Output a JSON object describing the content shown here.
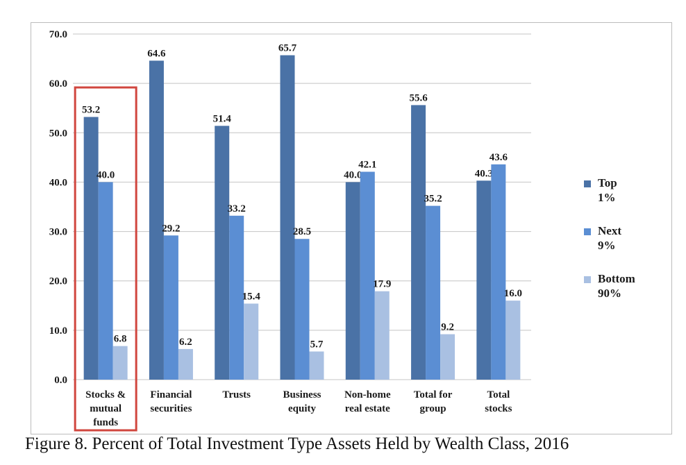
{
  "caption": "Figure 8. Percent of Total Investment Type Assets Held by Wealth Class, 2016",
  "chart_data": {
    "type": "bar",
    "title": "",
    "xlabel": "",
    "ylabel": "",
    "ylim": [
      0,
      70
    ],
    "yticks": [
      "0.0",
      "10.0",
      "20.0",
      "30.0",
      "40.0",
      "50.0",
      "60.0",
      "70.0"
    ],
    "grid": true,
    "legend_position": "right",
    "categories": [
      [
        "Stocks &",
        "mutual",
        "funds"
      ],
      [
        "Financial",
        "securities"
      ],
      [
        "Trusts"
      ],
      [
        "Business",
        "equity"
      ],
      [
        "Non-home",
        "real estate"
      ],
      [
        "Total for",
        "group"
      ],
      [
        "Total",
        "stocks"
      ]
    ],
    "series": [
      {
        "name": [
          "Top",
          "1%"
        ],
        "color": "#4a72a6",
        "values": [
          53.2,
          64.6,
          51.4,
          65.7,
          40.0,
          55.6,
          40.3
        ],
        "labels": [
          "53.2",
          "64.6",
          "51.4",
          "65.7",
          "40.0",
          "55.6",
          "40.3"
        ]
      },
      {
        "name": [
          "Next",
          "9%"
        ],
        "color": "#5b8ed3",
        "values": [
          40.0,
          29.2,
          33.2,
          28.5,
          42.1,
          35.2,
          43.6
        ],
        "labels": [
          "40.0",
          "29.2",
          "33.2",
          "28.5",
          "42.1",
          "35.2",
          "43.6"
        ]
      },
      {
        "name": [
          "Bottom",
          "90%"
        ],
        "color": "#a9c0e2",
        "values": [
          6.8,
          6.2,
          15.4,
          5.7,
          17.9,
          9.2,
          16.0
        ],
        "labels": [
          "6.8",
          "6.2",
          "15.4",
          "5.7",
          "17.9",
          "9.2",
          "16.0"
        ]
      }
    ],
    "highlight": {
      "category_index": 0,
      "color": "#d0463e"
    }
  }
}
